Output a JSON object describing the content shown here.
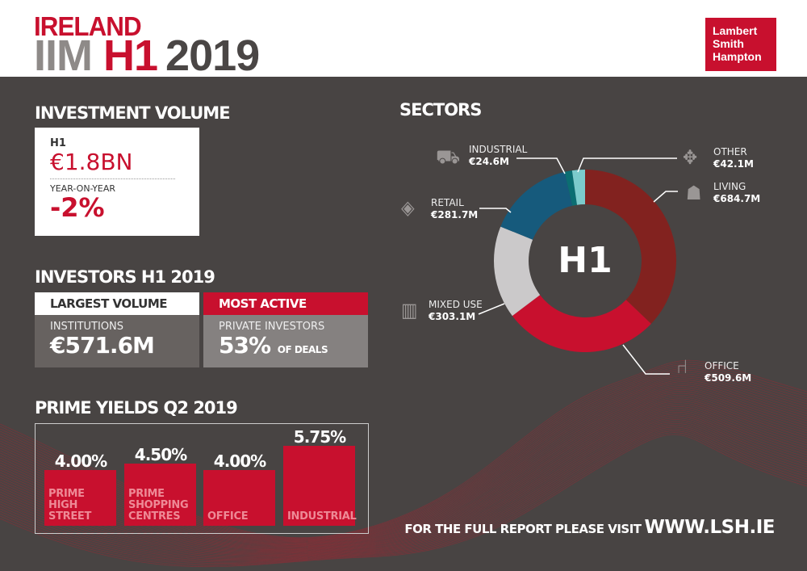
{
  "header": {
    "line1": "IRELAND",
    "iim": "IIM",
    "h1": "H1",
    "year": "2019",
    "logo": [
      "Lambert",
      "Smith",
      "Hampton"
    ]
  },
  "investment_volume": {
    "title": "INVESTMENT VOLUME",
    "period": "H1",
    "value": "€1.8BN",
    "yoy_label": "YEAR-ON-YEAR",
    "yoy_value": "-2%"
  },
  "investors": {
    "title": "INVESTORS H1 2019",
    "largest": {
      "header": "LARGEST VOLUME",
      "type": "INSTITUTIONS",
      "value": "€571.6M"
    },
    "active": {
      "header": "MOST ACTIVE",
      "type": "PRIVATE INVESTORS",
      "value": "53%",
      "suffix": "OF DEALS"
    }
  },
  "yields": {
    "title": "PRIME YIELDS Q2 2019",
    "items": [
      {
        "label": "PRIME HIGH STREET",
        "value": 4.0,
        "text": "4.00%"
      },
      {
        "label": "PRIME SHOPPING CENTRES",
        "value": 4.5,
        "text": "4.50%"
      },
      {
        "label": "OFFICE",
        "value": 4.0,
        "text": "4.00%"
      },
      {
        "label": "INDUSTRIAL",
        "value": 5.75,
        "text": "5.75%"
      }
    ]
  },
  "sectors": {
    "title": "SECTORS",
    "center": "H1",
    "items": [
      {
        "name": "LIVING",
        "value": 684.7,
        "text": "€684.7M",
        "color": "#82221f",
        "icon": "house-person-icon"
      },
      {
        "name": "OFFICE",
        "value": 509.6,
        "text": "€509.6M",
        "color": "#c8102e",
        "icon": "office-chair-icon"
      },
      {
        "name": "MIXED USE",
        "value": 303.1,
        "text": "€303.1M",
        "color": "#cbc9ca",
        "icon": "buildings-icon"
      },
      {
        "name": "RETAIL",
        "value": 281.7,
        "text": "€281.7M",
        "color": "#165a7c",
        "icon": "price-tag-icon"
      },
      {
        "name": "INDUSTRIAL",
        "value": 24.6,
        "text": "€24.6M",
        "color": "#0b6e72",
        "icon": "forklift-icon"
      },
      {
        "name": "OTHER",
        "value": 42.1,
        "text": "€42.1M",
        "color": "#7ccbcc",
        "icon": "direction-arrows-icon"
      }
    ]
  },
  "footer": {
    "text": "FOR THE FULL REPORT PLEASE VISIT",
    "url": "WWW.LSH.IE"
  }
}
